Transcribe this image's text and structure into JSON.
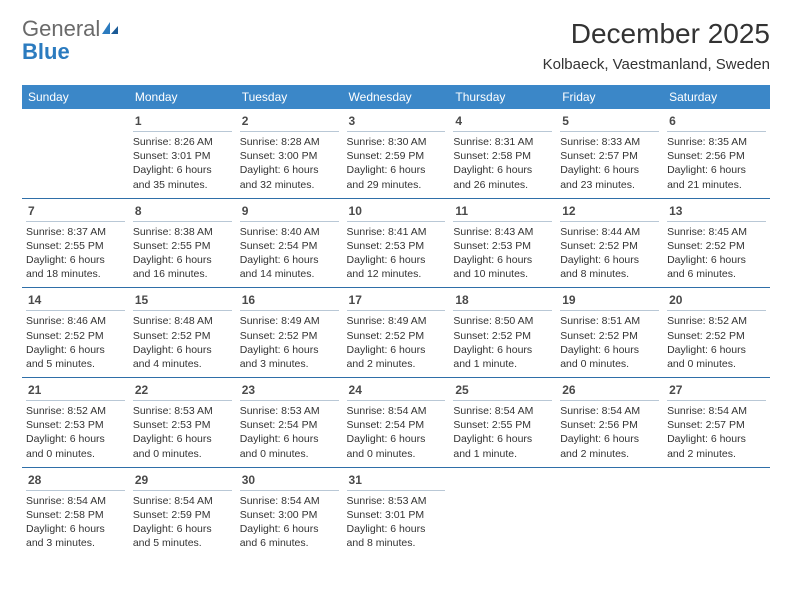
{
  "logo": {
    "part1": "General",
    "part2": "Blue"
  },
  "title": "December 2025",
  "location": "Kolbaeck, Vaestmanland, Sweden",
  "colors": {
    "header_bg": "#3b87c8",
    "header_text": "#ffffff",
    "row_border": "#2f6fa8",
    "daynum_border": "#b9c8d6",
    "text": "#333333",
    "logo_gray": "#6a6a6a",
    "logo_blue": "#2b7bbf",
    "background": "#ffffff"
  },
  "fonts": {
    "title_size": 28,
    "location_size": 15,
    "header_size": 12,
    "daynum_size": 12,
    "body_size": 10.5
  },
  "day_headers": [
    "Sunday",
    "Monday",
    "Tuesday",
    "Wednesday",
    "Thursday",
    "Friday",
    "Saturday"
  ],
  "weeks": [
    [
      {
        "num": "",
        "sunrise": "",
        "sunset": "",
        "daylight1": "",
        "daylight2": ""
      },
      {
        "num": "1",
        "sunrise": "Sunrise: 8:26 AM",
        "sunset": "Sunset: 3:01 PM",
        "daylight1": "Daylight: 6 hours",
        "daylight2": "and 35 minutes."
      },
      {
        "num": "2",
        "sunrise": "Sunrise: 8:28 AM",
        "sunset": "Sunset: 3:00 PM",
        "daylight1": "Daylight: 6 hours",
        "daylight2": "and 32 minutes."
      },
      {
        "num": "3",
        "sunrise": "Sunrise: 8:30 AM",
        "sunset": "Sunset: 2:59 PM",
        "daylight1": "Daylight: 6 hours",
        "daylight2": "and 29 minutes."
      },
      {
        "num": "4",
        "sunrise": "Sunrise: 8:31 AM",
        "sunset": "Sunset: 2:58 PM",
        "daylight1": "Daylight: 6 hours",
        "daylight2": "and 26 minutes."
      },
      {
        "num": "5",
        "sunrise": "Sunrise: 8:33 AM",
        "sunset": "Sunset: 2:57 PM",
        "daylight1": "Daylight: 6 hours",
        "daylight2": "and 23 minutes."
      },
      {
        "num": "6",
        "sunrise": "Sunrise: 8:35 AM",
        "sunset": "Sunset: 2:56 PM",
        "daylight1": "Daylight: 6 hours",
        "daylight2": "and 21 minutes."
      }
    ],
    [
      {
        "num": "7",
        "sunrise": "Sunrise: 8:37 AM",
        "sunset": "Sunset: 2:55 PM",
        "daylight1": "Daylight: 6 hours",
        "daylight2": "and 18 minutes."
      },
      {
        "num": "8",
        "sunrise": "Sunrise: 8:38 AM",
        "sunset": "Sunset: 2:55 PM",
        "daylight1": "Daylight: 6 hours",
        "daylight2": "and 16 minutes."
      },
      {
        "num": "9",
        "sunrise": "Sunrise: 8:40 AM",
        "sunset": "Sunset: 2:54 PM",
        "daylight1": "Daylight: 6 hours",
        "daylight2": "and 14 minutes."
      },
      {
        "num": "10",
        "sunrise": "Sunrise: 8:41 AM",
        "sunset": "Sunset: 2:53 PM",
        "daylight1": "Daylight: 6 hours",
        "daylight2": "and 12 minutes."
      },
      {
        "num": "11",
        "sunrise": "Sunrise: 8:43 AM",
        "sunset": "Sunset: 2:53 PM",
        "daylight1": "Daylight: 6 hours",
        "daylight2": "and 10 minutes."
      },
      {
        "num": "12",
        "sunrise": "Sunrise: 8:44 AM",
        "sunset": "Sunset: 2:52 PM",
        "daylight1": "Daylight: 6 hours",
        "daylight2": "and 8 minutes."
      },
      {
        "num": "13",
        "sunrise": "Sunrise: 8:45 AM",
        "sunset": "Sunset: 2:52 PM",
        "daylight1": "Daylight: 6 hours",
        "daylight2": "and 6 minutes."
      }
    ],
    [
      {
        "num": "14",
        "sunrise": "Sunrise: 8:46 AM",
        "sunset": "Sunset: 2:52 PM",
        "daylight1": "Daylight: 6 hours",
        "daylight2": "and 5 minutes."
      },
      {
        "num": "15",
        "sunrise": "Sunrise: 8:48 AM",
        "sunset": "Sunset: 2:52 PM",
        "daylight1": "Daylight: 6 hours",
        "daylight2": "and 4 minutes."
      },
      {
        "num": "16",
        "sunrise": "Sunrise: 8:49 AM",
        "sunset": "Sunset: 2:52 PM",
        "daylight1": "Daylight: 6 hours",
        "daylight2": "and 3 minutes."
      },
      {
        "num": "17",
        "sunrise": "Sunrise: 8:49 AM",
        "sunset": "Sunset: 2:52 PM",
        "daylight1": "Daylight: 6 hours",
        "daylight2": "and 2 minutes."
      },
      {
        "num": "18",
        "sunrise": "Sunrise: 8:50 AM",
        "sunset": "Sunset: 2:52 PM",
        "daylight1": "Daylight: 6 hours",
        "daylight2": "and 1 minute."
      },
      {
        "num": "19",
        "sunrise": "Sunrise: 8:51 AM",
        "sunset": "Sunset: 2:52 PM",
        "daylight1": "Daylight: 6 hours",
        "daylight2": "and 0 minutes."
      },
      {
        "num": "20",
        "sunrise": "Sunrise: 8:52 AM",
        "sunset": "Sunset: 2:52 PM",
        "daylight1": "Daylight: 6 hours",
        "daylight2": "and 0 minutes."
      }
    ],
    [
      {
        "num": "21",
        "sunrise": "Sunrise: 8:52 AM",
        "sunset": "Sunset: 2:53 PM",
        "daylight1": "Daylight: 6 hours",
        "daylight2": "and 0 minutes."
      },
      {
        "num": "22",
        "sunrise": "Sunrise: 8:53 AM",
        "sunset": "Sunset: 2:53 PM",
        "daylight1": "Daylight: 6 hours",
        "daylight2": "and 0 minutes."
      },
      {
        "num": "23",
        "sunrise": "Sunrise: 8:53 AM",
        "sunset": "Sunset: 2:54 PM",
        "daylight1": "Daylight: 6 hours",
        "daylight2": "and 0 minutes."
      },
      {
        "num": "24",
        "sunrise": "Sunrise: 8:54 AM",
        "sunset": "Sunset: 2:54 PM",
        "daylight1": "Daylight: 6 hours",
        "daylight2": "and 0 minutes."
      },
      {
        "num": "25",
        "sunrise": "Sunrise: 8:54 AM",
        "sunset": "Sunset: 2:55 PM",
        "daylight1": "Daylight: 6 hours",
        "daylight2": "and 1 minute."
      },
      {
        "num": "26",
        "sunrise": "Sunrise: 8:54 AM",
        "sunset": "Sunset: 2:56 PM",
        "daylight1": "Daylight: 6 hours",
        "daylight2": "and 2 minutes."
      },
      {
        "num": "27",
        "sunrise": "Sunrise: 8:54 AM",
        "sunset": "Sunset: 2:57 PM",
        "daylight1": "Daylight: 6 hours",
        "daylight2": "and 2 minutes."
      }
    ],
    [
      {
        "num": "28",
        "sunrise": "Sunrise: 8:54 AM",
        "sunset": "Sunset: 2:58 PM",
        "daylight1": "Daylight: 6 hours",
        "daylight2": "and 3 minutes."
      },
      {
        "num": "29",
        "sunrise": "Sunrise: 8:54 AM",
        "sunset": "Sunset: 2:59 PM",
        "daylight1": "Daylight: 6 hours",
        "daylight2": "and 5 minutes."
      },
      {
        "num": "30",
        "sunrise": "Sunrise: 8:54 AM",
        "sunset": "Sunset: 3:00 PM",
        "daylight1": "Daylight: 6 hours",
        "daylight2": "and 6 minutes."
      },
      {
        "num": "31",
        "sunrise": "Sunrise: 8:53 AM",
        "sunset": "Sunset: 3:01 PM",
        "daylight1": "Daylight: 6 hours",
        "daylight2": "and 8 minutes."
      },
      {
        "num": "",
        "sunrise": "",
        "sunset": "",
        "daylight1": "",
        "daylight2": ""
      },
      {
        "num": "",
        "sunrise": "",
        "sunset": "",
        "daylight1": "",
        "daylight2": ""
      },
      {
        "num": "",
        "sunrise": "",
        "sunset": "",
        "daylight1": "",
        "daylight2": ""
      }
    ]
  ]
}
